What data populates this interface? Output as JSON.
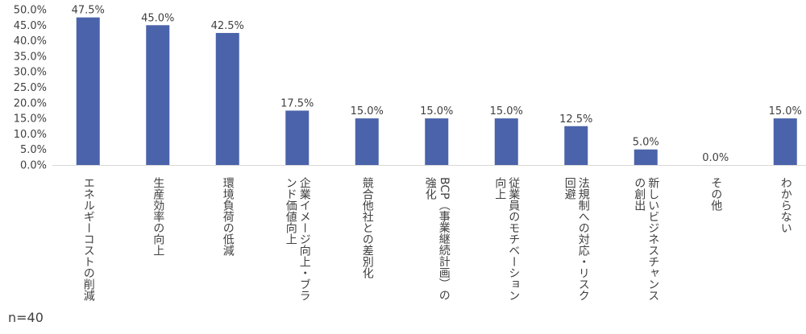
{
  "chart_data": {
    "type": "bar",
    "categories": [
      "エネルギーコストの削減",
      "生産効率の向上",
      "環境負荷の低減",
      "企業イメージ向上・ブランド価値向上",
      "競合他社との差別化",
      "BCP（事業継続計画）の強化",
      "従業員のモチベーション向上",
      "法規制への対応・リスク回避",
      "新しいビジネスチャンスの創出",
      "その他",
      "わからない"
    ],
    "category_lines": [
      [
        "エネルギーコストの削減"
      ],
      [
        "生産効率の向上"
      ],
      [
        "環境負荷の低減"
      ],
      [
        "企業イメージ向上・ブラ",
        "ンド価値向上"
      ],
      [
        "競合他社との差別化"
      ],
      [
        "BCP（事業継続計画）の",
        "強化"
      ],
      [
        "従業員のモチベーション",
        "向上"
      ],
      [
        "法規制への対応・リスク",
        "回避"
      ],
      [
        "新しいビジネスチャンス",
        "の創出"
      ],
      [
        "その他"
      ],
      [
        "わからない"
      ]
    ],
    "values": [
      47.5,
      45.0,
      42.5,
      17.5,
      15.0,
      15.0,
      15.0,
      12.5,
      5.0,
      0.0,
      15.0
    ],
    "value_labels": [
      "47.5%",
      "45.0%",
      "42.5%",
      "17.5%",
      "15.0%",
      "15.0%",
      "15.0%",
      "12.5%",
      "5.0%",
      "0.0%",
      "15.0%"
    ],
    "ylim": [
      0,
      50
    ],
    "yticks": [
      "0.0%",
      "5.0%",
      "10.0%",
      "15.0%",
      "20.0%",
      "25.0%",
      "30.0%",
      "35.0%",
      "40.0%",
      "45.0%",
      "50.0%"
    ],
    "bar_color": "#4a63aa",
    "note": "n=40",
    "grid": false
  }
}
